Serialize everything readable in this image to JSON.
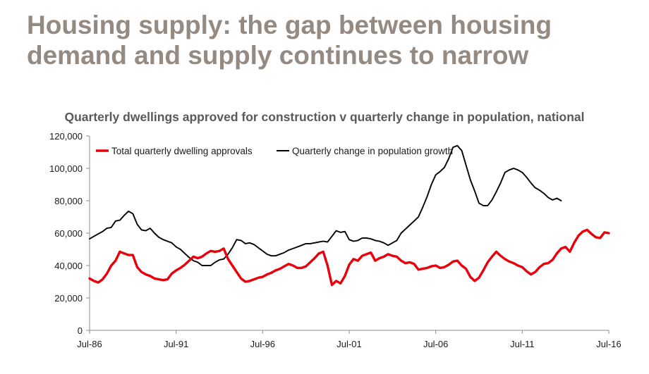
{
  "slide": {
    "title_line1": "Housing supply: the gap between housing",
    "title_line2": "demand and supply continues to narrow",
    "title_color": "#948a81"
  },
  "chart_data": {
    "type": "line",
    "title": "Quarterly dwellings approved for construction v quarterly change in population, national",
    "xlabel": "",
    "ylabel": "",
    "x_ticks": [
      "Jul-86",
      "Jul-91",
      "Jul-96",
      "Jul-01",
      "Jul-06",
      "Jul-11",
      "Jul-16"
    ],
    "x_range": [
      "1986-07",
      "2016-07"
    ],
    "ylim": [
      0,
      120000
    ],
    "y_ticks": [
      "0",
      "20,000",
      "40,000",
      "60,000",
      "80,000",
      "100,000",
      "120,000"
    ],
    "grid": false,
    "legend_position": "top-left",
    "series": [
      {
        "name": "Total quarterly dwelling approvals",
        "color": "#e8000b",
        "points": [
          [
            "1986-07",
            32000
          ],
          [
            "1986-10",
            30500
          ],
          [
            "1987-01",
            29500
          ],
          [
            "1987-04",
            31500
          ],
          [
            "1987-07",
            35000
          ],
          [
            "1987-10",
            40000
          ],
          [
            "1988-01",
            43000
          ],
          [
            "1988-04",
            48500
          ],
          [
            "1988-07",
            47500
          ],
          [
            "1988-10",
            46500
          ],
          [
            "1989-01",
            46500
          ],
          [
            "1989-04",
            39000
          ],
          [
            "1989-07",
            36000
          ],
          [
            "1989-10",
            34500
          ],
          [
            "1990-01",
            33500
          ],
          [
            "1990-04",
            32000
          ],
          [
            "1990-07",
            31500
          ],
          [
            "1990-10",
            31000
          ],
          [
            "1991-01",
            31500
          ],
          [
            "1991-04",
            35000
          ],
          [
            "1991-07",
            37000
          ],
          [
            "1991-10",
            38500
          ],
          [
            "1992-01",
            40500
          ],
          [
            "1992-04",
            43000
          ],
          [
            "1992-07",
            45500
          ],
          [
            "1992-10",
            44500
          ],
          [
            "1993-01",
            45500
          ],
          [
            "1993-04",
            47500
          ],
          [
            "1993-07",
            49000
          ],
          [
            "1993-10",
            48500
          ],
          [
            "1994-01",
            49000
          ],
          [
            "1994-04",
            50500
          ],
          [
            "1994-07",
            44000
          ],
          [
            "1994-10",
            40000
          ],
          [
            "1995-01",
            36000
          ],
          [
            "1995-04",
            32000
          ],
          [
            "1995-07",
            30000
          ],
          [
            "1995-10",
            30500
          ],
          [
            "1996-01",
            31500
          ],
          [
            "1996-04",
            32500
          ],
          [
            "1996-07",
            33000
          ],
          [
            "1996-10",
            34500
          ],
          [
            "1997-01",
            35500
          ],
          [
            "1997-04",
            37000
          ],
          [
            "1997-07",
            38000
          ],
          [
            "1997-10",
            39500
          ],
          [
            "1998-01",
            41000
          ],
          [
            "1998-04",
            40000
          ],
          [
            "1998-07",
            38500
          ],
          [
            "1998-10",
            38500
          ],
          [
            "1999-01",
            39500
          ],
          [
            "1999-04",
            42000
          ],
          [
            "1999-07",
            44500
          ],
          [
            "1999-10",
            47500
          ],
          [
            "2000-01",
            48500
          ],
          [
            "2000-04",
            40000
          ],
          [
            "2000-07",
            28000
          ],
          [
            "2000-10",
            30500
          ],
          [
            "2001-01",
            29000
          ],
          [
            "2001-04",
            33500
          ],
          [
            "2001-07",
            40500
          ],
          [
            "2001-10",
            44000
          ],
          [
            "2002-01",
            43000
          ],
          [
            "2002-04",
            46000
          ],
          [
            "2002-07",
            47000
          ],
          [
            "2002-10",
            48000
          ],
          [
            "2003-01",
            43000
          ],
          [
            "2003-04",
            44500
          ],
          [
            "2003-07",
            45500
          ],
          [
            "2003-10",
            47000
          ],
          [
            "2004-01",
            46000
          ],
          [
            "2004-04",
            45500
          ],
          [
            "2004-07",
            43000
          ],
          [
            "2004-10",
            41500
          ],
          [
            "2005-01",
            42000
          ],
          [
            "2005-04",
            41000
          ],
          [
            "2005-07",
            37500
          ],
          [
            "2005-10",
            38000
          ],
          [
            "2006-01",
            38500
          ],
          [
            "2006-04",
            39500
          ],
          [
            "2006-07",
            40000
          ],
          [
            "2006-10",
            38500
          ],
          [
            "2007-01",
            39000
          ],
          [
            "2007-04",
            40500
          ],
          [
            "2007-07",
            42500
          ],
          [
            "2007-10",
            43000
          ],
          [
            "2008-01",
            40000
          ],
          [
            "2008-04",
            38000
          ],
          [
            "2008-07",
            33000
          ],
          [
            "2008-10",
            30500
          ],
          [
            "2009-01",
            32500
          ],
          [
            "2009-04",
            37000
          ],
          [
            "2009-07",
            42000
          ],
          [
            "2009-10",
            45500
          ],
          [
            "2010-01",
            48500
          ],
          [
            "2010-04",
            46000
          ],
          [
            "2010-07",
            44000
          ],
          [
            "2010-10",
            42500
          ],
          [
            "2011-01",
            41500
          ],
          [
            "2011-04",
            40000
          ],
          [
            "2011-07",
            39000
          ],
          [
            "2011-10",
            36500
          ],
          [
            "2012-01",
            34500
          ],
          [
            "2012-04",
            36000
          ],
          [
            "2012-07",
            39000
          ],
          [
            "2012-10",
            41000
          ],
          [
            "2013-01",
            41500
          ],
          [
            "2013-04",
            43500
          ],
          [
            "2013-07",
            47500
          ],
          [
            "2013-10",
            50500
          ],
          [
            "2014-01",
            51500
          ],
          [
            "2014-04",
            48500
          ],
          [
            "2014-07",
            54000
          ],
          [
            "2014-10",
            58500
          ],
          [
            "2015-01",
            61000
          ],
          [
            "2015-04",
            62000
          ],
          [
            "2015-07",
            59500
          ],
          [
            "2015-10",
            57500
          ],
          [
            "2016-01",
            57000
          ],
          [
            "2016-04",
            60500
          ],
          [
            "2016-07",
            60000
          ]
        ]
      },
      {
        "name": "Quarterly change in population growth",
        "color": "#000000",
        "points": [
          [
            "1986-07",
            56500
          ],
          [
            "1986-10",
            58000
          ],
          [
            "1987-01",
            59500
          ],
          [
            "1987-04",
            61000
          ],
          [
            "1987-07",
            63000
          ],
          [
            "1987-10",
            63500
          ],
          [
            "1988-01",
            67500
          ],
          [
            "1988-04",
            68000
          ],
          [
            "1988-07",
            71000
          ],
          [
            "1988-10",
            73500
          ],
          [
            "1989-01",
            72000
          ],
          [
            "1989-04",
            65500
          ],
          [
            "1989-07",
            62000
          ],
          [
            "1989-10",
            61500
          ],
          [
            "1990-01",
            63000
          ],
          [
            "1990-04",
            60000
          ],
          [
            "1990-07",
            57500
          ],
          [
            "1990-10",
            56000
          ],
          [
            "1991-01",
            55000
          ],
          [
            "1991-04",
            54000
          ],
          [
            "1991-07",
            51500
          ],
          [
            "1991-10",
            50000
          ],
          [
            "1992-01",
            47500
          ],
          [
            "1992-04",
            45000
          ],
          [
            "1992-07",
            43000
          ],
          [
            "1992-10",
            42000
          ],
          [
            "1993-01",
            40000
          ],
          [
            "1993-04",
            40000
          ],
          [
            "1993-07",
            40000
          ],
          [
            "1993-10",
            42000
          ],
          [
            "1994-01",
            43500
          ],
          [
            "1994-04",
            44000
          ],
          [
            "1994-07",
            47000
          ],
          [
            "1994-10",
            51000
          ],
          [
            "1995-01",
            56000
          ],
          [
            "1995-04",
            55500
          ],
          [
            "1995-07",
            53500
          ],
          [
            "1995-10",
            54000
          ],
          [
            "1996-01",
            53000
          ],
          [
            "1996-04",
            51000
          ],
          [
            "1996-07",
            49000
          ],
          [
            "1996-10",
            47000
          ],
          [
            "1997-01",
            46000
          ],
          [
            "1997-04",
            46000
          ],
          [
            "1997-07",
            47000
          ],
          [
            "1997-10",
            48000
          ],
          [
            "1998-01",
            49500
          ],
          [
            "1998-04",
            50500
          ],
          [
            "1998-07",
            51500
          ],
          [
            "1998-10",
            52500
          ],
          [
            "1999-01",
            53500
          ],
          [
            "1999-04",
            53500
          ],
          [
            "1999-07",
            54000
          ],
          [
            "1999-10",
            54500
          ],
          [
            "2000-01",
            55000
          ],
          [
            "2000-04",
            54500
          ],
          [
            "2000-07",
            58000
          ],
          [
            "2000-10",
            61500
          ],
          [
            "2001-01",
            60500
          ],
          [
            "2001-04",
            61000
          ],
          [
            "2001-07",
            56000
          ],
          [
            "2001-10",
            55000
          ],
          [
            "2002-01",
            55500
          ],
          [
            "2002-04",
            57000
          ],
          [
            "2002-07",
            57000
          ],
          [
            "2002-10",
            56500
          ],
          [
            "2003-01",
            55500
          ],
          [
            "2003-04",
            55000
          ],
          [
            "2003-07",
            54000
          ],
          [
            "2003-10",
            52500
          ],
          [
            "2004-01",
            54000
          ],
          [
            "2004-04",
            55500
          ],
          [
            "2004-07",
            60000
          ],
          [
            "2004-10",
            62500
          ],
          [
            "2005-01",
            65000
          ],
          [
            "2005-04",
            67500
          ],
          [
            "2005-07",
            70000
          ],
          [
            "2005-10",
            76000
          ],
          [
            "2006-01",
            82500
          ],
          [
            "2006-04",
            90000
          ],
          [
            "2006-07",
            96000
          ],
          [
            "2006-10",
            98000
          ],
          [
            "2007-01",
            100500
          ],
          [
            "2007-04",
            106000
          ],
          [
            "2007-07",
            113000
          ],
          [
            "2007-10",
            114000
          ],
          [
            "2008-01",
            111000
          ],
          [
            "2008-04",
            102000
          ],
          [
            "2008-07",
            93000
          ],
          [
            "2008-10",
            86000
          ],
          [
            "2009-01",
            78500
          ],
          [
            "2009-04",
            77000
          ],
          [
            "2009-07",
            77000
          ],
          [
            "2009-10",
            80500
          ],
          [
            "2010-01",
            85500
          ],
          [
            "2010-04",
            91000
          ],
          [
            "2010-07",
            97500
          ],
          [
            "2010-10",
            99000
          ],
          [
            "2011-01",
            100000
          ],
          [
            "2011-04",
            99000
          ],
          [
            "2011-07",
            97500
          ],
          [
            "2011-10",
            94500
          ],
          [
            "2012-01",
            91000
          ],
          [
            "2012-04",
            88000
          ],
          [
            "2012-07",
            86500
          ],
          [
            "2012-10",
            84500
          ],
          [
            "2013-01",
            82000
          ],
          [
            "2013-04",
            80500
          ],
          [
            "2013-07",
            81500
          ],
          [
            "2013-10",
            80000
          ]
        ]
      }
    ]
  }
}
